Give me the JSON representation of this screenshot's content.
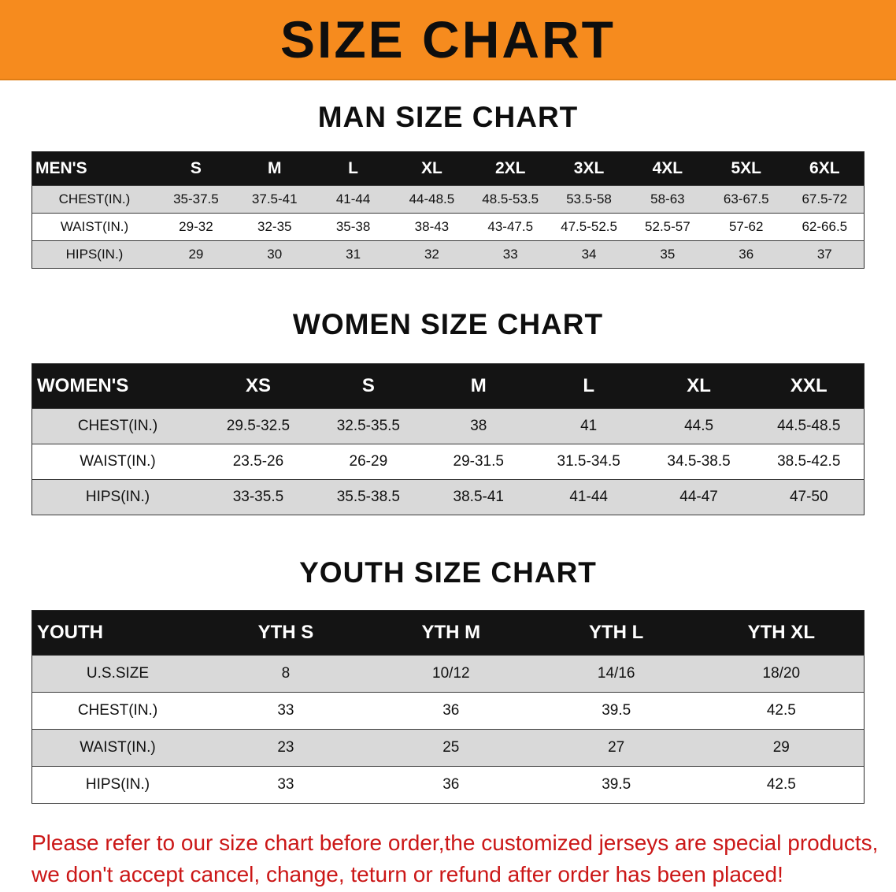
{
  "banner": {
    "title": "SIZE CHART"
  },
  "colors": {
    "banner_bg": "#f68b1e",
    "table_header_bg": "#141414",
    "row_stripe": "#d9d9d9",
    "footer_text": "#cb1717"
  },
  "sections": [
    {
      "heading": "MAN SIZE CHART",
      "table": {
        "header": [
          "MEN'S",
          "S",
          "M",
          "L",
          "XL",
          "2XL",
          "3XL",
          "4XL",
          "5XL",
          "6XL"
        ],
        "rows": [
          {
            "label": "CHEST(IN.)",
            "values": [
              "35-37.5",
              "37.5-41",
              "41-44",
              "44-48.5",
              "48.5-53.5",
              "53.5-58",
              "58-63",
              "63-67.5",
              "67.5-72"
            ]
          },
          {
            "label": "WAIST(IN.)",
            "values": [
              "29-32",
              "32-35",
              "35-38",
              "38-43",
              "43-47.5",
              "47.5-52.5",
              "52.5-57",
              "57-62",
              "62-66.5"
            ]
          },
          {
            "label": "HIPS(IN.)",
            "values": [
              "29",
              "30",
              "31",
              "32",
              "33",
              "34",
              "35",
              "36",
              "37"
            ]
          }
        ]
      }
    },
    {
      "heading": "WOMEN SIZE CHART",
      "table": {
        "header": [
          "WOMEN'S",
          "XS",
          "S",
          "M",
          "L",
          "XL",
          "XXL"
        ],
        "rows": [
          {
            "label": "CHEST(IN.)",
            "values": [
              "29.5-32.5",
              "32.5-35.5",
              "38",
              "41",
              "44.5",
              "44.5-48.5"
            ]
          },
          {
            "label": "WAIST(IN.)",
            "values": [
              "23.5-26",
              "26-29",
              "29-31.5",
              "31.5-34.5",
              "34.5-38.5",
              "38.5-42.5"
            ]
          },
          {
            "label": "HIPS(IN.)",
            "values": [
              "33-35.5",
              "35.5-38.5",
              "38.5-41",
              "41-44",
              "44-47",
              "47-50"
            ]
          }
        ]
      }
    },
    {
      "heading": "YOUTH SIZE CHART",
      "table": {
        "header": [
          "YOUTH",
          "YTH S",
          "YTH M",
          "YTH L",
          "YTH XL"
        ],
        "rows": [
          {
            "label": "U.S.SIZE",
            "values": [
              "8",
              "10/12",
              "14/16",
              "18/20"
            ]
          },
          {
            "label": "CHEST(IN.)",
            "values": [
              "33",
              "36",
              "39.5",
              "42.5"
            ]
          },
          {
            "label": "WAIST(IN.)",
            "values": [
              "23",
              "25",
              "27",
              "29"
            ]
          },
          {
            "label": "HIPS(IN.)",
            "values": [
              "33",
              "36",
              "39.5",
              "42.5"
            ]
          }
        ]
      }
    }
  ],
  "footer": {
    "lines": [
      "Please refer to our size chart before order,the customized jerseys are special products,",
      "we don't accept cancel, change, teturn or refund after order has been placed!"
    ]
  }
}
